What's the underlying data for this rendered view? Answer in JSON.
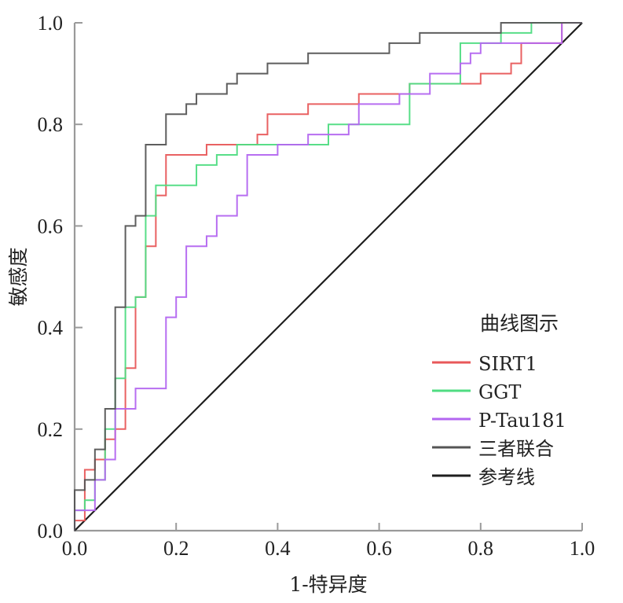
{
  "chart_data": {
    "type": "line",
    "title": "",
    "xlabel": "1-特异度",
    "ylabel": "敏感度",
    "xlim": [
      0,
      1
    ],
    "ylim": [
      0,
      1
    ],
    "x_ticks": [
      "0.0",
      "0.2",
      "0.4",
      "0.6",
      "0.8",
      "1.0"
    ],
    "y_ticks": [
      "0.0",
      "0.2",
      "0.4",
      "0.6",
      "0.8",
      "1.0"
    ],
    "grid": false,
    "legend": {
      "title": "曲线图示",
      "position": "bottom-right"
    },
    "series": [
      {
        "name": "SIRT1",
        "color": "#e8585a",
        "step": true,
        "x": [
          0,
          0,
          0.02,
          0.02,
          0.04,
          0.04,
          0.06,
          0.06,
          0.08,
          0.08,
          0.1,
          0.1,
          0.12,
          0.12,
          0.14,
          0.14,
          0.16,
          0.16,
          0.18,
          0.18,
          0.26,
          0.26,
          0.36,
          0.36,
          0.38,
          0.38,
          0.46,
          0.46,
          0.56,
          0.56,
          0.66,
          0.66,
          0.8,
          0.8,
          0.86,
          0.86,
          0.88,
          0.88,
          0.96,
          0.96,
          1.0
        ],
        "y": [
          0,
          0.02,
          0.02,
          0.12,
          0.12,
          0.14,
          0.14,
          0.18,
          0.18,
          0.2,
          0.2,
          0.32,
          0.32,
          0.46,
          0.46,
          0.56,
          0.56,
          0.66,
          0.66,
          0.74,
          0.74,
          0.76,
          0.76,
          0.78,
          0.78,
          0.82,
          0.82,
          0.84,
          0.84,
          0.86,
          0.86,
          0.88,
          0.88,
          0.9,
          0.9,
          0.92,
          0.92,
          0.96,
          0.96,
          1.0,
          1.0
        ]
      },
      {
        "name": "GGT",
        "color": "#4fdc82",
        "step": true,
        "x": [
          0,
          0,
          0.02,
          0.02,
          0.04,
          0.04,
          0.06,
          0.06,
          0.08,
          0.08,
          0.1,
          0.1,
          0.12,
          0.12,
          0.14,
          0.14,
          0.16,
          0.16,
          0.24,
          0.24,
          0.28,
          0.28,
          0.32,
          0.32,
          0.5,
          0.5,
          0.66,
          0.66,
          0.76,
          0.76,
          0.84,
          0.84,
          0.9,
          0.9,
          1.0
        ],
        "y": [
          0,
          0.04,
          0.04,
          0.06,
          0.06,
          0.1,
          0.1,
          0.2,
          0.2,
          0.3,
          0.3,
          0.44,
          0.44,
          0.46,
          0.46,
          0.62,
          0.62,
          0.68,
          0.68,
          0.72,
          0.72,
          0.74,
          0.74,
          0.76,
          0.76,
          0.8,
          0.8,
          0.88,
          0.88,
          0.96,
          0.96,
          0.98,
          0.98,
          1.0,
          1.0
        ]
      },
      {
        "name": "P-Tau181",
        "color": "#b366f0",
        "step": true,
        "x": [
          0,
          0,
          0.04,
          0.04,
          0.06,
          0.06,
          0.08,
          0.08,
          0.12,
          0.12,
          0.18,
          0.18,
          0.2,
          0.2,
          0.22,
          0.22,
          0.26,
          0.26,
          0.28,
          0.28,
          0.32,
          0.32,
          0.34,
          0.34,
          0.4,
          0.4,
          0.46,
          0.46,
          0.54,
          0.54,
          0.56,
          0.56,
          0.64,
          0.64,
          0.7,
          0.7,
          0.76,
          0.76,
          0.78,
          0.78,
          0.8,
          0.8,
          0.96,
          0.96,
          1.0
        ],
        "y": [
          0,
          0.04,
          0.04,
          0.1,
          0.1,
          0.14,
          0.14,
          0.24,
          0.24,
          0.28,
          0.28,
          0.42,
          0.42,
          0.46,
          0.46,
          0.56,
          0.56,
          0.58,
          0.58,
          0.62,
          0.62,
          0.66,
          0.66,
          0.74,
          0.74,
          0.76,
          0.76,
          0.78,
          0.78,
          0.8,
          0.8,
          0.84,
          0.84,
          0.86,
          0.86,
          0.9,
          0.9,
          0.92,
          0.92,
          0.94,
          0.94,
          0.96,
          0.96,
          1.0,
          1.0
        ]
      },
      {
        "name": "三者联合",
        "color": "#555555",
        "step": true,
        "x": [
          0,
          0,
          0.02,
          0.02,
          0.04,
          0.04,
          0.06,
          0.06,
          0.08,
          0.08,
          0.1,
          0.1,
          0.12,
          0.12,
          0.14,
          0.14,
          0.18,
          0.18,
          0.22,
          0.22,
          0.24,
          0.24,
          0.3,
          0.3,
          0.32,
          0.32,
          0.38,
          0.38,
          0.46,
          0.46,
          0.62,
          0.62,
          0.68,
          0.68,
          0.84,
          0.84,
          1.0
        ],
        "y": [
          0,
          0.08,
          0.08,
          0.1,
          0.1,
          0.16,
          0.16,
          0.24,
          0.24,
          0.44,
          0.44,
          0.6,
          0.6,
          0.62,
          0.62,
          0.76,
          0.76,
          0.82,
          0.82,
          0.84,
          0.84,
          0.86,
          0.86,
          0.88,
          0.88,
          0.9,
          0.9,
          0.92,
          0.92,
          0.94,
          0.94,
          0.96,
          0.96,
          0.98,
          0.98,
          1.0,
          1.0
        ]
      },
      {
        "name": "参考线",
        "color": "#1e1e1e",
        "step": false,
        "x": [
          0,
          1
        ],
        "y": [
          0,
          1
        ]
      }
    ]
  }
}
